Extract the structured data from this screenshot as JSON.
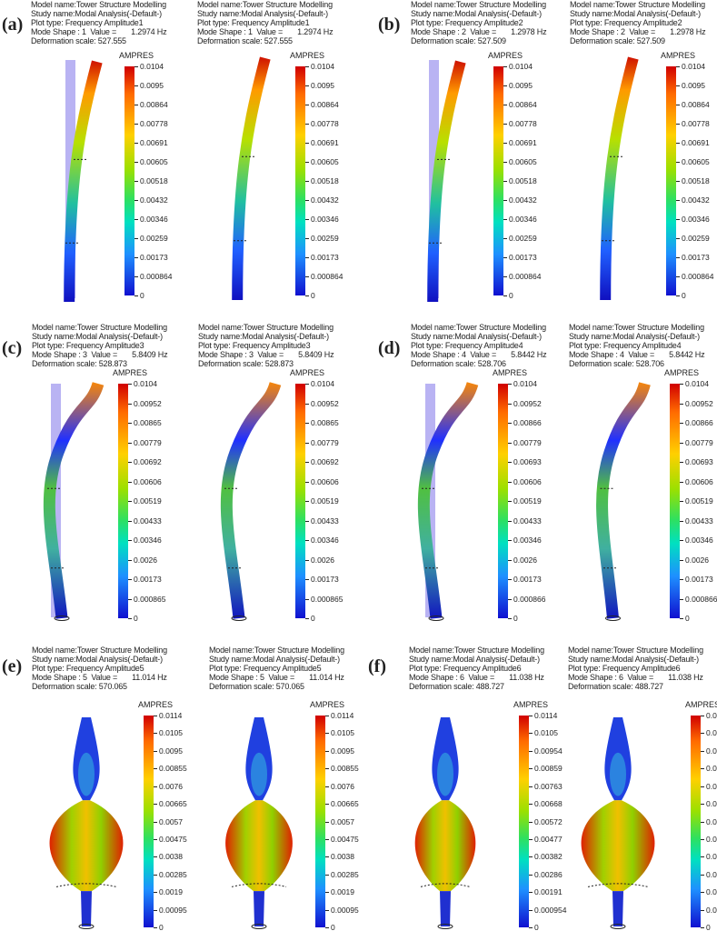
{
  "panel_labels": [
    "(a)",
    "(b)",
    "(c)",
    "(d)",
    "(e)",
    "(f)"
  ],
  "legend_title": "AMPRES",
  "modes": [
    {
      "model": "Model name:Tower Structure Modelling",
      "study": "Study name:Modal Analysis(-Default-)",
      "plot": "Plot type: Frequency Amplitude1",
      "mode": "Mode Shape : 1  Value =       1.2974 Hz",
      "scale": "Deformation scale: 527.555",
      "ticks": [
        "0.0104",
        "0.0095",
        "0.00864",
        "0.00778",
        "0.00691",
        "0.00605",
        "0.00518",
        "0.00432",
        "0.00346",
        "0.00259",
        "0.00173",
        "0.000864",
        "0"
      ]
    },
    {
      "model": "Model name:Tower Structure Modelling",
      "study": "Study name:Modal Analysis(-Default-)",
      "plot": "Plot type: Frequency Amplitude2",
      "mode": "Mode Shape : 2  Value =       1.2978 Hz",
      "scale": "Deformation scale: 527.509",
      "ticks": [
        "0.0104",
        "0.0095",
        "0.00864",
        "0.00778",
        "0.00691",
        "0.00605",
        "0.00518",
        "0.00432",
        "0.00346",
        "0.00259",
        "0.00173",
        "0.000864",
        "0"
      ]
    },
    {
      "model": "Model name:Tower Structure Modelling",
      "study": "Study name:Modal Analysis(-Default-)",
      "plot": "Plot type: Frequency Amplitude3",
      "mode": "Mode Shape : 3  Value =       5.8409 Hz",
      "scale": "Deformation scale: 528.873",
      "ticks": [
        "0.0104",
        "0.00952",
        "0.00865",
        "0.00779",
        "0.00692",
        "0.00606",
        "0.00519",
        "0.00433",
        "0.00346",
        "0.0026",
        "0.00173",
        "0.000865",
        "0"
      ]
    },
    {
      "model": "Model name:Tower Structure Modelling",
      "study": "Study name:Modal Analysis(-Default-)",
      "plot": "Plot type: Frequency Amplitude4",
      "mode": "Mode Shape : 4  Value =       5.8442 Hz",
      "scale": "Deformation scale: 528.706",
      "ticks": [
        "0.0104",
        "0.00952",
        "0.00866",
        "0.00779",
        "0.00693",
        "0.00606",
        "0.00519",
        "0.00433",
        "0.00346",
        "0.0026",
        "0.00173",
        "0.000866",
        "0"
      ]
    },
    {
      "model": "Model name:Tower Structure Modelling",
      "study": "Study name:Modal Analysis(-Default-)",
      "plot": "Plot type: Frequency Amplitude5",
      "mode": "Mode Shape : 5  Value =       11.014 Hz",
      "scale": "Deformation scale: 570.065",
      "ticks": [
        "0.0114",
        "0.0105",
        "0.0095",
        "0.00855",
        "0.0076",
        "0.00665",
        "0.0057",
        "0.00475",
        "0.0038",
        "0.00285",
        "0.0019",
        "0.00095",
        "0"
      ]
    },
    {
      "model": "Model name:Tower Structure Modelling",
      "study": "Study name:Modal Analysis(-Default-)",
      "plot": "Plot type: Frequency Amplitude6",
      "mode": "Mode Shape : 6  Value =       11.038 Hz",
      "scale": "Deformation scale: 488.727",
      "ticks": [
        "0.0114",
        "0.0105",
        "0.00954",
        "0.00859",
        "0.00763",
        "0.00668",
        "0.00572",
        "0.00477",
        "0.00382",
        "0.00286",
        "0.00191",
        "0.000954",
        "0"
      ]
    }
  ]
}
